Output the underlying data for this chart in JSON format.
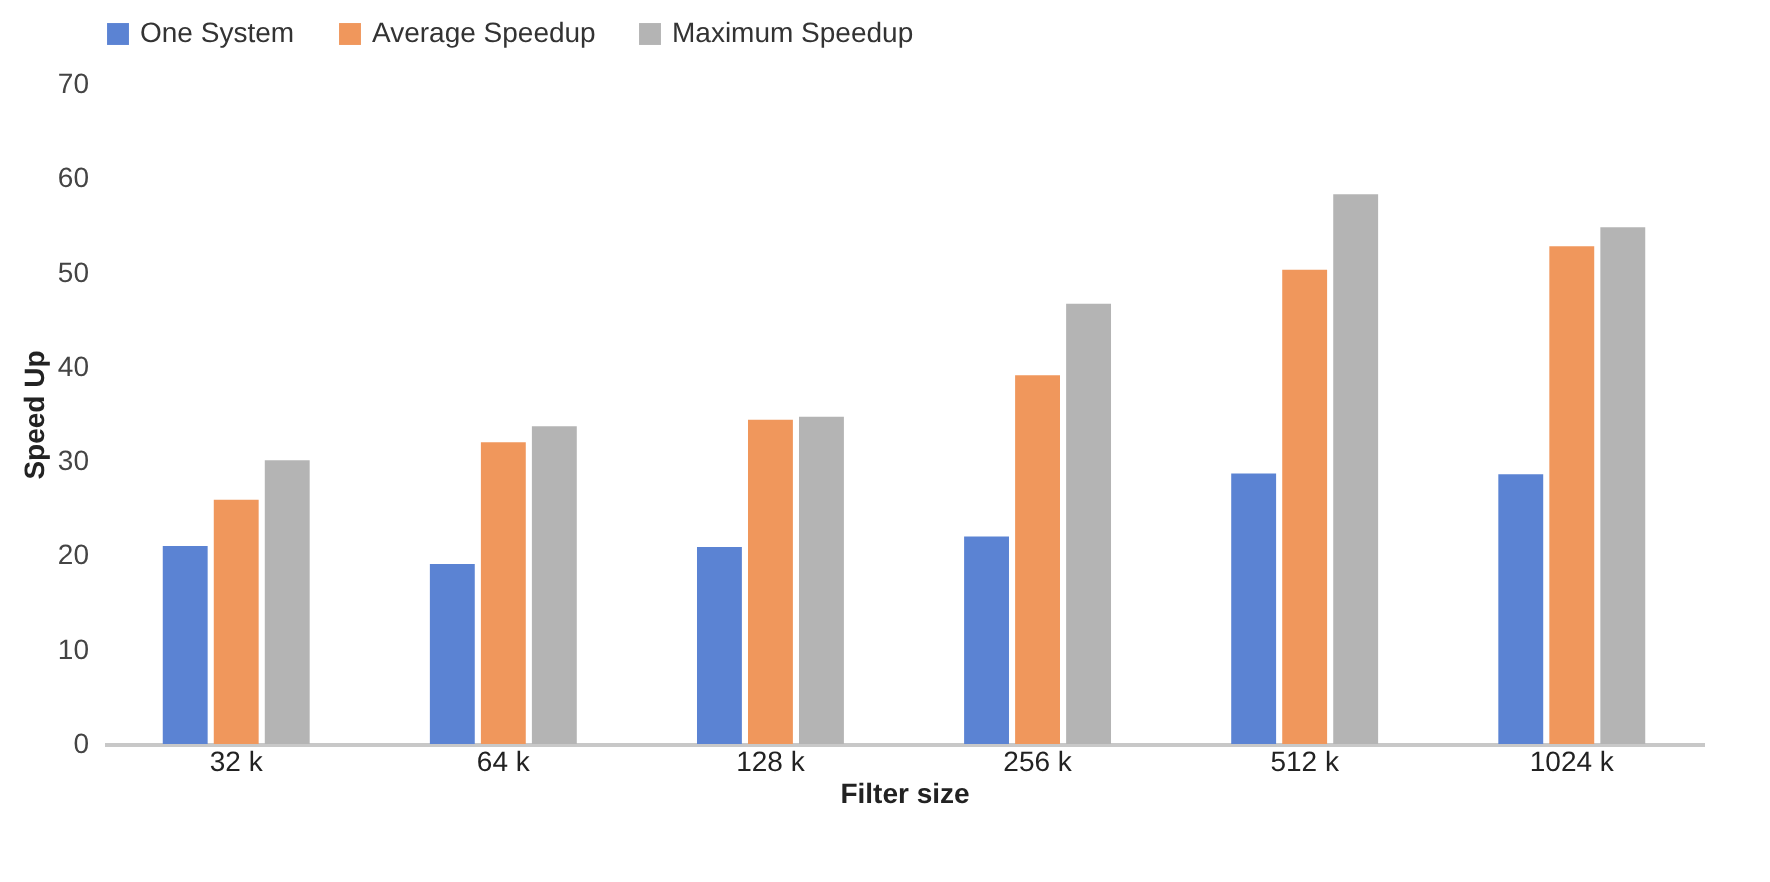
{
  "chart_data": {
    "type": "bar",
    "xlabel": "Filter size",
    "ylabel": "Speed Up",
    "categories": [
      "32 k",
      "64 k",
      "128 k",
      "256 k",
      "512 k",
      "1024 k"
    ],
    "series": [
      {
        "name": "One System",
        "color": "#5b83d3",
        "values": [
          21.0,
          19.1,
          20.9,
          22.0,
          28.7,
          28.6
        ]
      },
      {
        "name": "Average Speedup",
        "color": "#f0975c",
        "values": [
          25.9,
          32.0,
          34.4,
          39.1,
          50.3,
          52.8
        ]
      },
      {
        "name": "Maximum Speedup",
        "color": "#b4b4b4",
        "values": [
          30.1,
          33.7,
          34.7,
          46.7,
          58.3,
          54.8
        ]
      }
    ],
    "ylim": [
      0,
      70
    ],
    "yticks": [
      0,
      10,
      20,
      30,
      40,
      50,
      60,
      70
    ],
    "grid": false,
    "legend": "top"
  }
}
